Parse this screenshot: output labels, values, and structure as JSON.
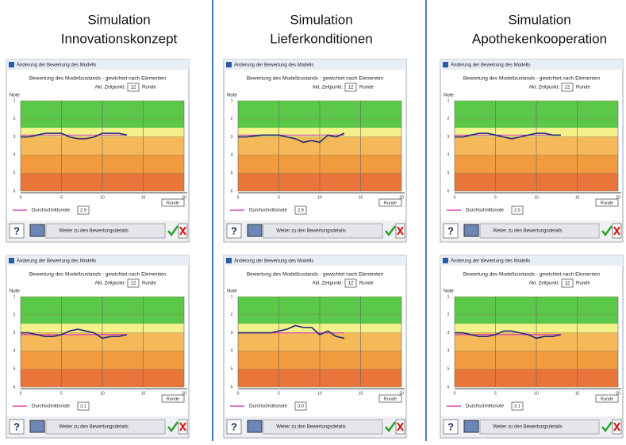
{
  "columns": [
    {
      "title": [
        "Simulation",
        "Innovationskonzept"
      ]
    },
    {
      "title": [
        "Simulation",
        "Lieferkonditionen"
      ]
    },
    {
      "title": [
        "Simulation",
        "Apothekenkooperation"
      ]
    }
  ],
  "window": {
    "window_title": "Änderung der Bewertung des Modells",
    "heading": "Bewertung des Modellzustands - gewichtet nach Elementen",
    "time_label": "Akt. Zeitpunkt:",
    "time_value": "12",
    "time_unit": "Runde",
    "y_label": "Note",
    "x_label": "Runde",
    "legend": "Durchschnittsnote",
    "help": "?",
    "details_button": "Weiter zu den Bewertungsdetails",
    "xlim": [
      0,
      20
    ],
    "xticks": [
      0,
      5,
      10,
      15,
      20
    ],
    "ylim": [
      1,
      6
    ],
    "yticks": [
      1,
      2,
      3,
      4,
      5,
      6
    ],
    "bands": [
      {
        "from": 1,
        "to": 2.5,
        "color": "#5cc84a"
      },
      {
        "from": 2.5,
        "to": 3,
        "color": "#f4f08a"
      },
      {
        "from": 3,
        "to": 4,
        "color": "#f6b95a"
      },
      {
        "from": 4,
        "to": 5,
        "color": "#f19a3e"
      },
      {
        "from": 5,
        "to": 6,
        "color": "#e9753a"
      }
    ],
    "line_color": "#1f2a7a",
    "average_color": "#d648b8",
    "x": [
      0,
      1,
      2,
      3,
      4,
      5,
      6,
      7,
      8,
      9,
      10,
      11,
      12,
      13
    ]
  },
  "windows": [
    {
      "column": 0,
      "row": 0,
      "average": 2.9,
      "average_label": "2.9",
      "values": [
        3.0,
        3.0,
        2.9,
        2.8,
        2.8,
        2.8,
        3.0,
        3.1,
        3.1,
        3.0,
        2.8,
        2.8,
        2.8,
        2.9
      ]
    },
    {
      "column": 1,
      "row": 0,
      "average": 2.9,
      "average_label": "2.9",
      "values": [
        3.0,
        3.0,
        2.95,
        2.9,
        2.9,
        2.9,
        3.0,
        3.1,
        3.3,
        3.2,
        3.3,
        2.9,
        3.0,
        2.8
      ]
    },
    {
      "column": 2,
      "row": 0,
      "average": 2.9,
      "average_label": "2.9",
      "values": [
        3.0,
        3.0,
        2.9,
        2.8,
        2.8,
        2.9,
        3.0,
        3.1,
        3.0,
        2.9,
        2.8,
        2.8,
        2.9,
        2.9
      ]
    },
    {
      "column": 0,
      "row": 1,
      "average": 3.1,
      "average_label": "3.1",
      "values": [
        3.0,
        3.0,
        3.1,
        3.2,
        3.2,
        3.1,
        2.9,
        2.8,
        2.9,
        3.0,
        3.3,
        3.2,
        3.2,
        3.1
      ]
    },
    {
      "column": 1,
      "row": 1,
      "average": 3.0,
      "average_label": "3.0",
      "values": [
        3.0,
        3.0,
        3.0,
        3.0,
        3.0,
        2.9,
        2.8,
        2.6,
        2.7,
        2.7,
        3.1,
        2.9,
        3.2,
        3.3
      ]
    },
    {
      "column": 2,
      "row": 1,
      "average": 3.1,
      "average_label": "3.1",
      "values": [
        3.0,
        3.0,
        3.1,
        3.2,
        3.2,
        3.1,
        2.9,
        2.9,
        3.0,
        3.1,
        3.3,
        3.2,
        3.2,
        3.1
      ]
    }
  ]
}
